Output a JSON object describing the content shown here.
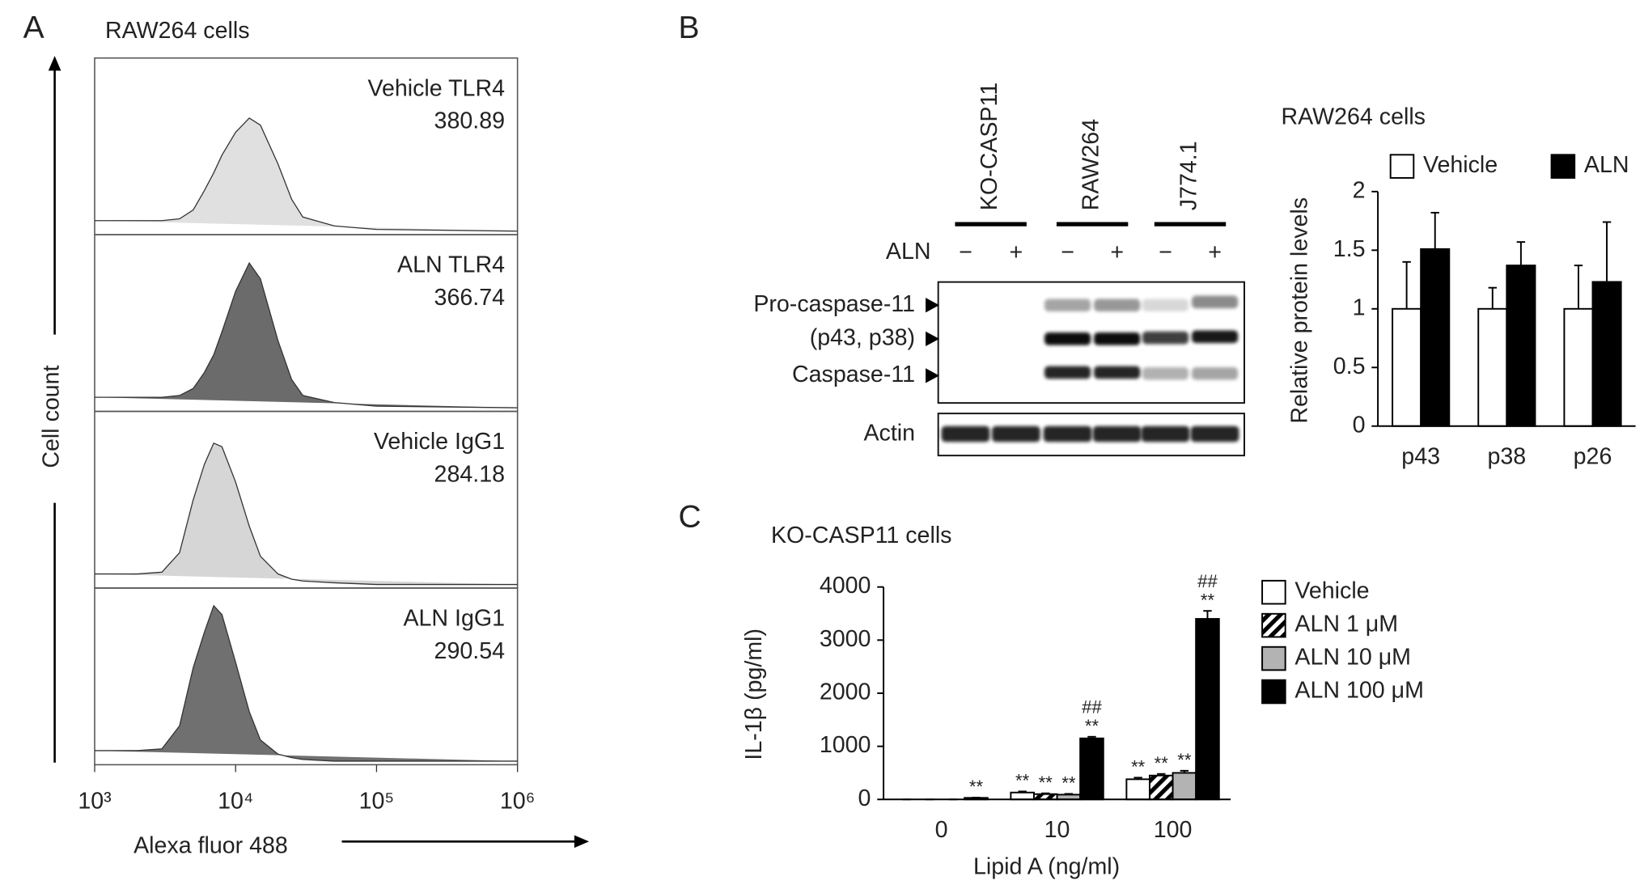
{
  "panel_labels": [
    "A",
    "B",
    "C"
  ],
  "blot": {
    "groups": [
      "KO-CASP11",
      "RAW264",
      "J774.1"
    ],
    "treatment": "ALN",
    "lanes": [
      "−",
      "+",
      "−",
      "+",
      "−",
      "+"
    ],
    "band_labels": [
      "Pro-caspase-11",
      "(p43, p38)",
      "Caspase-11"
    ],
    "loading": "Actin"
  },
  "chart_data": [
    {
      "type": "flow_histogram",
      "title": "RAW264  cells",
      "ylabel": "Cell count",
      "xlabel": "Alexa fluor 488",
      "xscale": "log",
      "xlim": [
        1000,
        1000000
      ],
      "xticks": [
        {
          "value": 1000,
          "label": "10³"
        },
        {
          "value": 10000,
          "label": "10⁴"
        },
        {
          "value": 100000,
          "label": "10⁵"
        },
        {
          "value": 1000000,
          "label": "10⁶"
        }
      ],
      "ylim": [
        0,
        100
      ],
      "x": [
        1000,
        2000,
        3000,
        4000,
        5000,
        6000,
        7000,
        8000,
        10000,
        12500,
        15000,
        20000,
        25000,
        30000,
        50000,
        100000,
        1000000
      ],
      "series": [
        {
          "name": "Vehicle TLR4",
          "mfi": 380.89,
          "color": "#e0e0e0",
          "values": [
            8,
            8,
            8,
            9,
            14,
            25,
            35,
            45,
            58,
            66,
            62,
            40,
            20,
            10,
            5,
            3,
            2
          ]
        },
        {
          "name": "ALN TLR4",
          "mfi": 366.74,
          "color": "#6b6b6b",
          "values": [
            8,
            8,
            8,
            9,
            13,
            22,
            32,
            45,
            68,
            84,
            75,
            40,
            18,
            9,
            5,
            3,
            2
          ]
        },
        {
          "name": "Vehicle IgG1",
          "mfi": 284.18,
          "color": "#d6d6d6",
          "values": [
            8,
            8,
            9,
            20,
            50,
            70,
            82,
            80,
            60,
            35,
            18,
            8,
            5,
            4,
            3,
            2,
            2
          ]
        },
        {
          "name": "ALN IgG1",
          "mfi": 290.54,
          "color": "#707070",
          "values": [
            8,
            8,
            9,
            22,
            55,
            75,
            90,
            85,
            58,
            30,
            14,
            6,
            4,
            3,
            2,
            2,
            2
          ]
        }
      ]
    },
    {
      "type": "bar",
      "title": "RAW264 cells",
      "ylabel": "Relative protein levels",
      "categories": [
        "p43",
        "p38",
        "p26"
      ],
      "ylim": [
        0,
        2
      ],
      "yticks": [
        0,
        0.5,
        1,
        1.5,
        2
      ],
      "series": [
        {
          "name": "Vehicle",
          "color": "#ffffff",
          "values": [
            1,
            1,
            1
          ],
          "errors": [
            0.4,
            0.18,
            0.37
          ]
        },
        {
          "name": "ALN",
          "color": "#000000",
          "values": [
            1.51,
            1.37,
            1.23
          ],
          "errors": [
            0.31,
            0.2,
            0.51
          ]
        }
      ]
    },
    {
      "type": "bar",
      "title": "KO-CASP11 cells",
      "ylabel": "IL-1β (pg/ml)",
      "xlabel": "Lipid A (ng/ml)",
      "categories": [
        "0",
        "10",
        "100"
      ],
      "ylim": [
        0,
        4000
      ],
      "yticks": [
        0,
        1000,
        2000,
        3000,
        4000
      ],
      "series": [
        {
          "name": "Vehicle",
          "color": "#ffffff",
          "values": [
            0,
            130,
            380
          ],
          "errors": [
            0,
            20,
            30
          ],
          "annotations": [
            null,
            [
              "**"
            ],
            [
              "**"
            ]
          ]
        },
        {
          "name": "ALN 1 μM",
          "color": "#ffffff",
          "pattern": "hatch",
          "values": [
            0,
            100,
            450
          ],
          "errors": [
            0,
            15,
            30
          ],
          "annotations": [
            null,
            [
              "**"
            ],
            [
              "**"
            ]
          ]
        },
        {
          "name": "ALN 10 μM",
          "color": "#b3b3b3",
          "values": [
            0,
            90,
            500
          ],
          "errors": [
            0,
            15,
            40
          ],
          "annotations": [
            null,
            [
              "**"
            ],
            [
              "**"
            ]
          ]
        },
        {
          "name": "ALN 100 μM",
          "color": "#000000",
          "values": [
            30,
            1150,
            3400
          ],
          "errors": [
            5,
            30,
            150
          ],
          "annotations": [
            [
              "**"
            ],
            [
              "**",
              "##"
            ],
            [
              "**",
              "##"
            ]
          ]
        }
      ]
    }
  ]
}
